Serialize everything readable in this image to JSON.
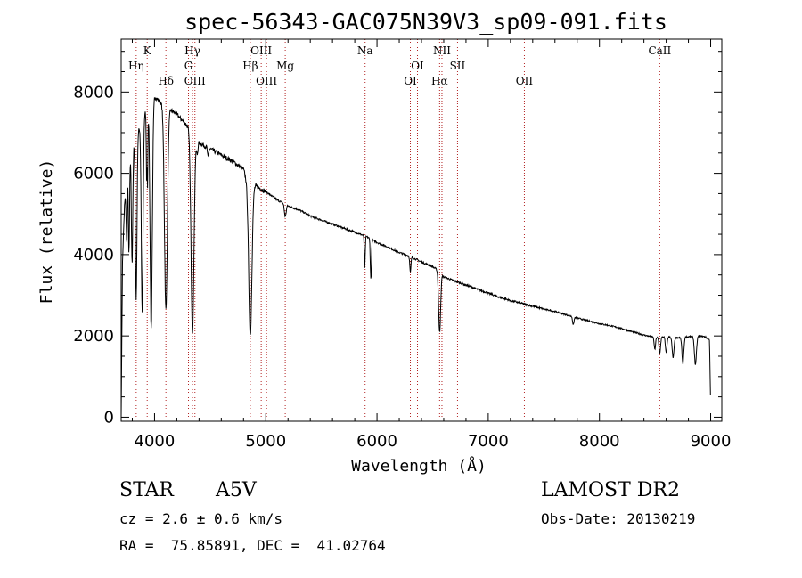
{
  "chart_data": {
    "type": "line",
    "title": "spec-56343-GAC075N39V3_sp09-091.fits",
    "xlabel": "Wavelength (Å)",
    "ylabel": "Flux (relative)",
    "xlim": [
      3700,
      9100
    ],
    "ylim": [
      -100,
      9300
    ],
    "xticks": [
      4000,
      5000,
      6000,
      7000,
      8000,
      9000
    ],
    "yticks": [
      0,
      2000,
      4000,
      6000,
      8000
    ],
    "grid": false,
    "line_color": "#000000",
    "marker_color": "#b22222",
    "continuum": [
      [
        3700,
        0
      ],
      [
        3712,
        3800
      ],
      [
        3730,
        5200
      ],
      [
        3760,
        6100
      ],
      [
        3800,
        6600
      ],
      [
        3850,
        7000
      ],
      [
        3900,
        7400
      ],
      [
        3950,
        7700
      ],
      [
        4000,
        7900
      ],
      [
        4050,
        7750
      ],
      [
        4100,
        7650
      ],
      [
        4150,
        7550
      ],
      [
        4200,
        7450
      ],
      [
        4250,
        7300
      ],
      [
        4300,
        7150
      ],
      [
        4350,
        6850
      ],
      [
        4400,
        6750
      ],
      [
        4500,
        6600
      ],
      [
        4600,
        6450
      ],
      [
        4700,
        6300
      ],
      [
        4800,
        6100
      ],
      [
        4850,
        5600
      ],
      [
        4900,
        5700
      ],
      [
        5000,
        5550
      ],
      [
        5100,
        5350
      ],
      [
        5200,
        5200
      ],
      [
        5300,
        5100
      ],
      [
        5400,
        4950
      ],
      [
        5500,
        4850
      ],
      [
        5600,
        4750
      ],
      [
        5700,
        4650
      ],
      [
        5800,
        4550
      ],
      [
        5900,
        4450
      ],
      [
        6000,
        4300
      ],
      [
        6100,
        4180
      ],
      [
        6200,
        4050
      ],
      [
        6300,
        3950
      ],
      [
        6400,
        3820
      ],
      [
        6500,
        3700
      ],
      [
        6560,
        3600
      ],
      [
        6600,
        3450
      ],
      [
        6700,
        3350
      ],
      [
        6800,
        3250
      ],
      [
        6900,
        3150
      ],
      [
        7000,
        3050
      ],
      [
        7100,
        2950
      ],
      [
        7200,
        2870
      ],
      [
        7300,
        2800
      ],
      [
        7400,
        2730
      ],
      [
        7500,
        2660
      ],
      [
        7600,
        2600
      ],
      [
        7700,
        2520
      ],
      [
        7800,
        2440
      ],
      [
        7900,
        2370
      ],
      [
        8000,
        2300
      ],
      [
        8100,
        2250
      ],
      [
        8200,
        2180
      ],
      [
        8300,
        2100
      ],
      [
        8400,
        2020
      ],
      [
        8500,
        1960
      ],
      [
        8600,
        1980
      ],
      [
        8700,
        1950
      ],
      [
        8800,
        1980
      ],
      [
        8900,
        2000
      ],
      [
        8950,
        1980
      ],
      [
        8990,
        1900
      ],
      [
        9000,
        200
      ]
    ],
    "absorption_lines": [
      {
        "center": 3750,
        "depth": 1500,
        "width": 5
      },
      {
        "center": 3770,
        "depth": 2200,
        "width": 5
      },
      {
        "center": 3798,
        "depth": 2800,
        "width": 6
      },
      {
        "center": 3835,
        "depth": 4000,
        "width": 7
      },
      {
        "center": 3889,
        "depth": 4700,
        "width": 8
      },
      {
        "center": 3933,
        "depth": 3000,
        "width": 5
      },
      {
        "center": 3970,
        "depth": 5600,
        "width": 10
      },
      {
        "center": 4102,
        "depth": 5000,
        "width": 13
      },
      {
        "center": 4341,
        "depth": 4800,
        "width": 13
      },
      {
        "center": 4384,
        "depth": 300,
        "width": 6
      },
      {
        "center": 4481,
        "depth": 250,
        "width": 5
      },
      {
        "center": 4861,
        "depth": 3600,
        "width": 14
      },
      {
        "center": 5175,
        "depth": 300,
        "width": 8
      },
      {
        "center": 5890,
        "depth": 800,
        "width": 4
      },
      {
        "center": 5945,
        "depth": 1000,
        "width": 5
      },
      {
        "center": 6300,
        "depth": 400,
        "width": 5
      },
      {
        "center": 6563,
        "depth": 1500,
        "width": 9
      },
      {
        "center": 7765,
        "depth": 200,
        "width": 6
      },
      {
        "center": 8498,
        "depth": 300,
        "width": 6
      },
      {
        "center": 8542,
        "depth": 400,
        "width": 7
      },
      {
        "center": 8600,
        "depth": 400,
        "width": 7
      },
      {
        "center": 8662,
        "depth": 500,
        "width": 8
      },
      {
        "center": 8750,
        "depth": 650,
        "width": 8
      },
      {
        "center": 8863,
        "depth": 700,
        "width": 9
      }
    ],
    "emission_spikes": [
      {
        "center": 3933,
        "height": 1700,
        "width": 2
      }
    ],
    "line_markers": [
      {
        "label": "Hη",
        "wavelength": 3835,
        "row": 1
      },
      {
        "label": "K",
        "wavelength": 3934,
        "row": 0
      },
      {
        "label": "Hδ",
        "wavelength": 4102,
        "row": 2
      },
      {
        "label": "Hγ",
        "wavelength": 4341,
        "row": 0
      },
      {
        "label": "G",
        "wavelength": 4305,
        "row": 1
      },
      {
        "label": "OIII",
        "wavelength": 4363,
        "row": 2
      },
      {
        "label": "Hβ",
        "wavelength": 4861,
        "row": 1
      },
      {
        "label": "OIII",
        "wavelength": 4959,
        "row": 0
      },
      {
        "label": "OIII",
        "wavelength": 5007,
        "row": 2
      },
      {
        "label": "Mg",
        "wavelength": 5175,
        "row": 1
      },
      {
        "label": "Na",
        "wavelength": 5893,
        "row": 0
      },
      {
        "label": "OI",
        "wavelength": 6300,
        "row": 2
      },
      {
        "label": "OI",
        "wavelength": 6364,
        "row": 1
      },
      {
        "label": "NII",
        "wavelength": 6584,
        "row": 0
      },
      {
        "label": "Hα",
        "wavelength": 6563,
        "row": 2
      },
      {
        "label": "SII",
        "wavelength": 6724,
        "row": 1
      },
      {
        "label": "OII",
        "wavelength": 7325,
        "row": 2
      },
      {
        "label": "CaII",
        "wavelength": 8542,
        "row": 0
      }
    ]
  },
  "info": {
    "class_label": "STAR",
    "subclass": "A5V",
    "survey": "LAMOST DR2",
    "redshift": "cz = 2.6 ± 0.6 km/s",
    "obs_date": "Obs-Date: 20130219",
    "coords": "RA =  75.85891, DEC =  41.02764"
  }
}
